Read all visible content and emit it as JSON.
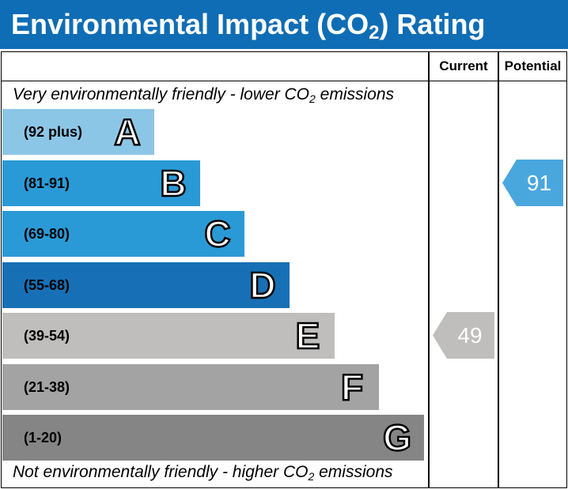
{
  "title": {
    "text": "Environmental Impact (CO",
    "sub": "2",
    "text_end": ") Rating"
  },
  "columns": {
    "current": "Current",
    "potential": "Potential"
  },
  "top_note": {
    "text": "Very environmentally friendly - lower CO",
    "sub": "2",
    "text_end": " emissions"
  },
  "bottom_note": {
    "text": "Not environmentally friendly - higher CO",
    "sub": "2",
    "text_end": " emissions"
  },
  "chart_data": {
    "type": "bar",
    "bands": [
      {
        "letter": "A",
        "range": "(92 plus)",
        "min": 92,
        "max": 100,
        "color": "#8cc6e7"
      },
      {
        "letter": "B",
        "range": "(81-91)",
        "min": 81,
        "max": 91,
        "color": "#2a9ad6"
      },
      {
        "letter": "C",
        "range": "(69-80)",
        "min": 69,
        "max": 80,
        "color": "#2a9ad6"
      },
      {
        "letter": "D",
        "range": "(55-68)",
        "min": 55,
        "max": 68,
        "color": "#1770b5"
      },
      {
        "letter": "E",
        "range": "(39-54)",
        "min": 39,
        "max": 54,
        "color": "#bfbebc"
      },
      {
        "letter": "F",
        "range": "(21-38)",
        "min": 21,
        "max": 38,
        "color": "#a3a3a3"
      },
      {
        "letter": "G",
        "range": "(1-20)",
        "min": 1,
        "max": 20,
        "color": "#858585"
      }
    ],
    "current": {
      "value": 49,
      "band": "E",
      "color": "#bfbebc"
    },
    "potential": {
      "value": 91,
      "band": "B",
      "color": "#4aa7de"
    }
  }
}
